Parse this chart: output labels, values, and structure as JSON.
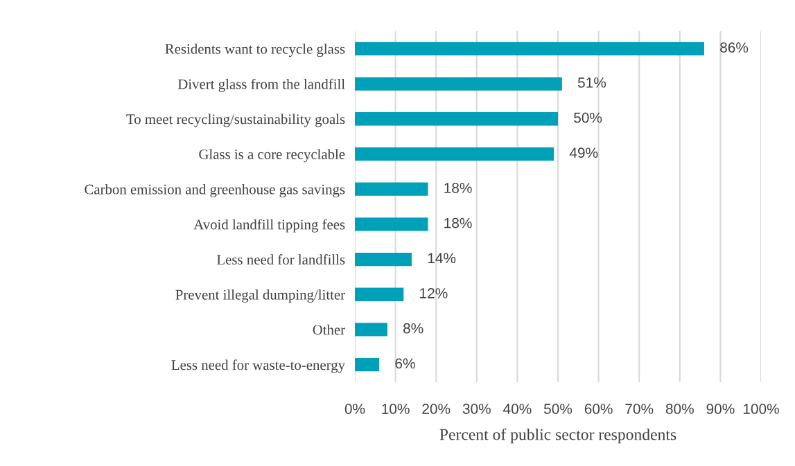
{
  "chart_data": {
    "type": "bar",
    "orientation": "horizontal",
    "xlabel": "Percent of public sector respondents",
    "categories": [
      "Residents want to recycle glass",
      "Divert glass from the landfill",
      "To meet recycling/sustainability goals",
      "Glass is a core recyclable",
      "Carbon emission and greenhouse gas savings",
      "Avoid landfill tipping fees",
      "Less need for landfills",
      "Prevent illegal dumping/litter",
      "Other",
      "Less need for waste-to-energy"
    ],
    "values": [
      86,
      51,
      50,
      49,
      18,
      18,
      14,
      12,
      8,
      6
    ],
    "value_labels": [
      "86%",
      "51%",
      "50%",
      "49%",
      "18%",
      "18%",
      "14%",
      "12%",
      "8%",
      "6%"
    ],
    "color": "#00a0b8",
    "xlim": [
      0,
      100
    ],
    "xticks": [
      {
        "value": 0,
        "label": "0%"
      },
      {
        "value": 10,
        "label": "10%"
      },
      {
        "value": 20,
        "label": "20%"
      },
      {
        "value": 30,
        "label": "30%"
      },
      {
        "value": 40,
        "label": "40%"
      },
      {
        "value": 50,
        "label": "50%"
      },
      {
        "value": 60,
        "label": "60%"
      },
      {
        "value": 70,
        "label": "70%"
      },
      {
        "value": 80,
        "label": "80%"
      },
      {
        "value": 90,
        "label": "90%"
      },
      {
        "value": 100,
        "label": "100%"
      }
    ],
    "grid": "x"
  }
}
